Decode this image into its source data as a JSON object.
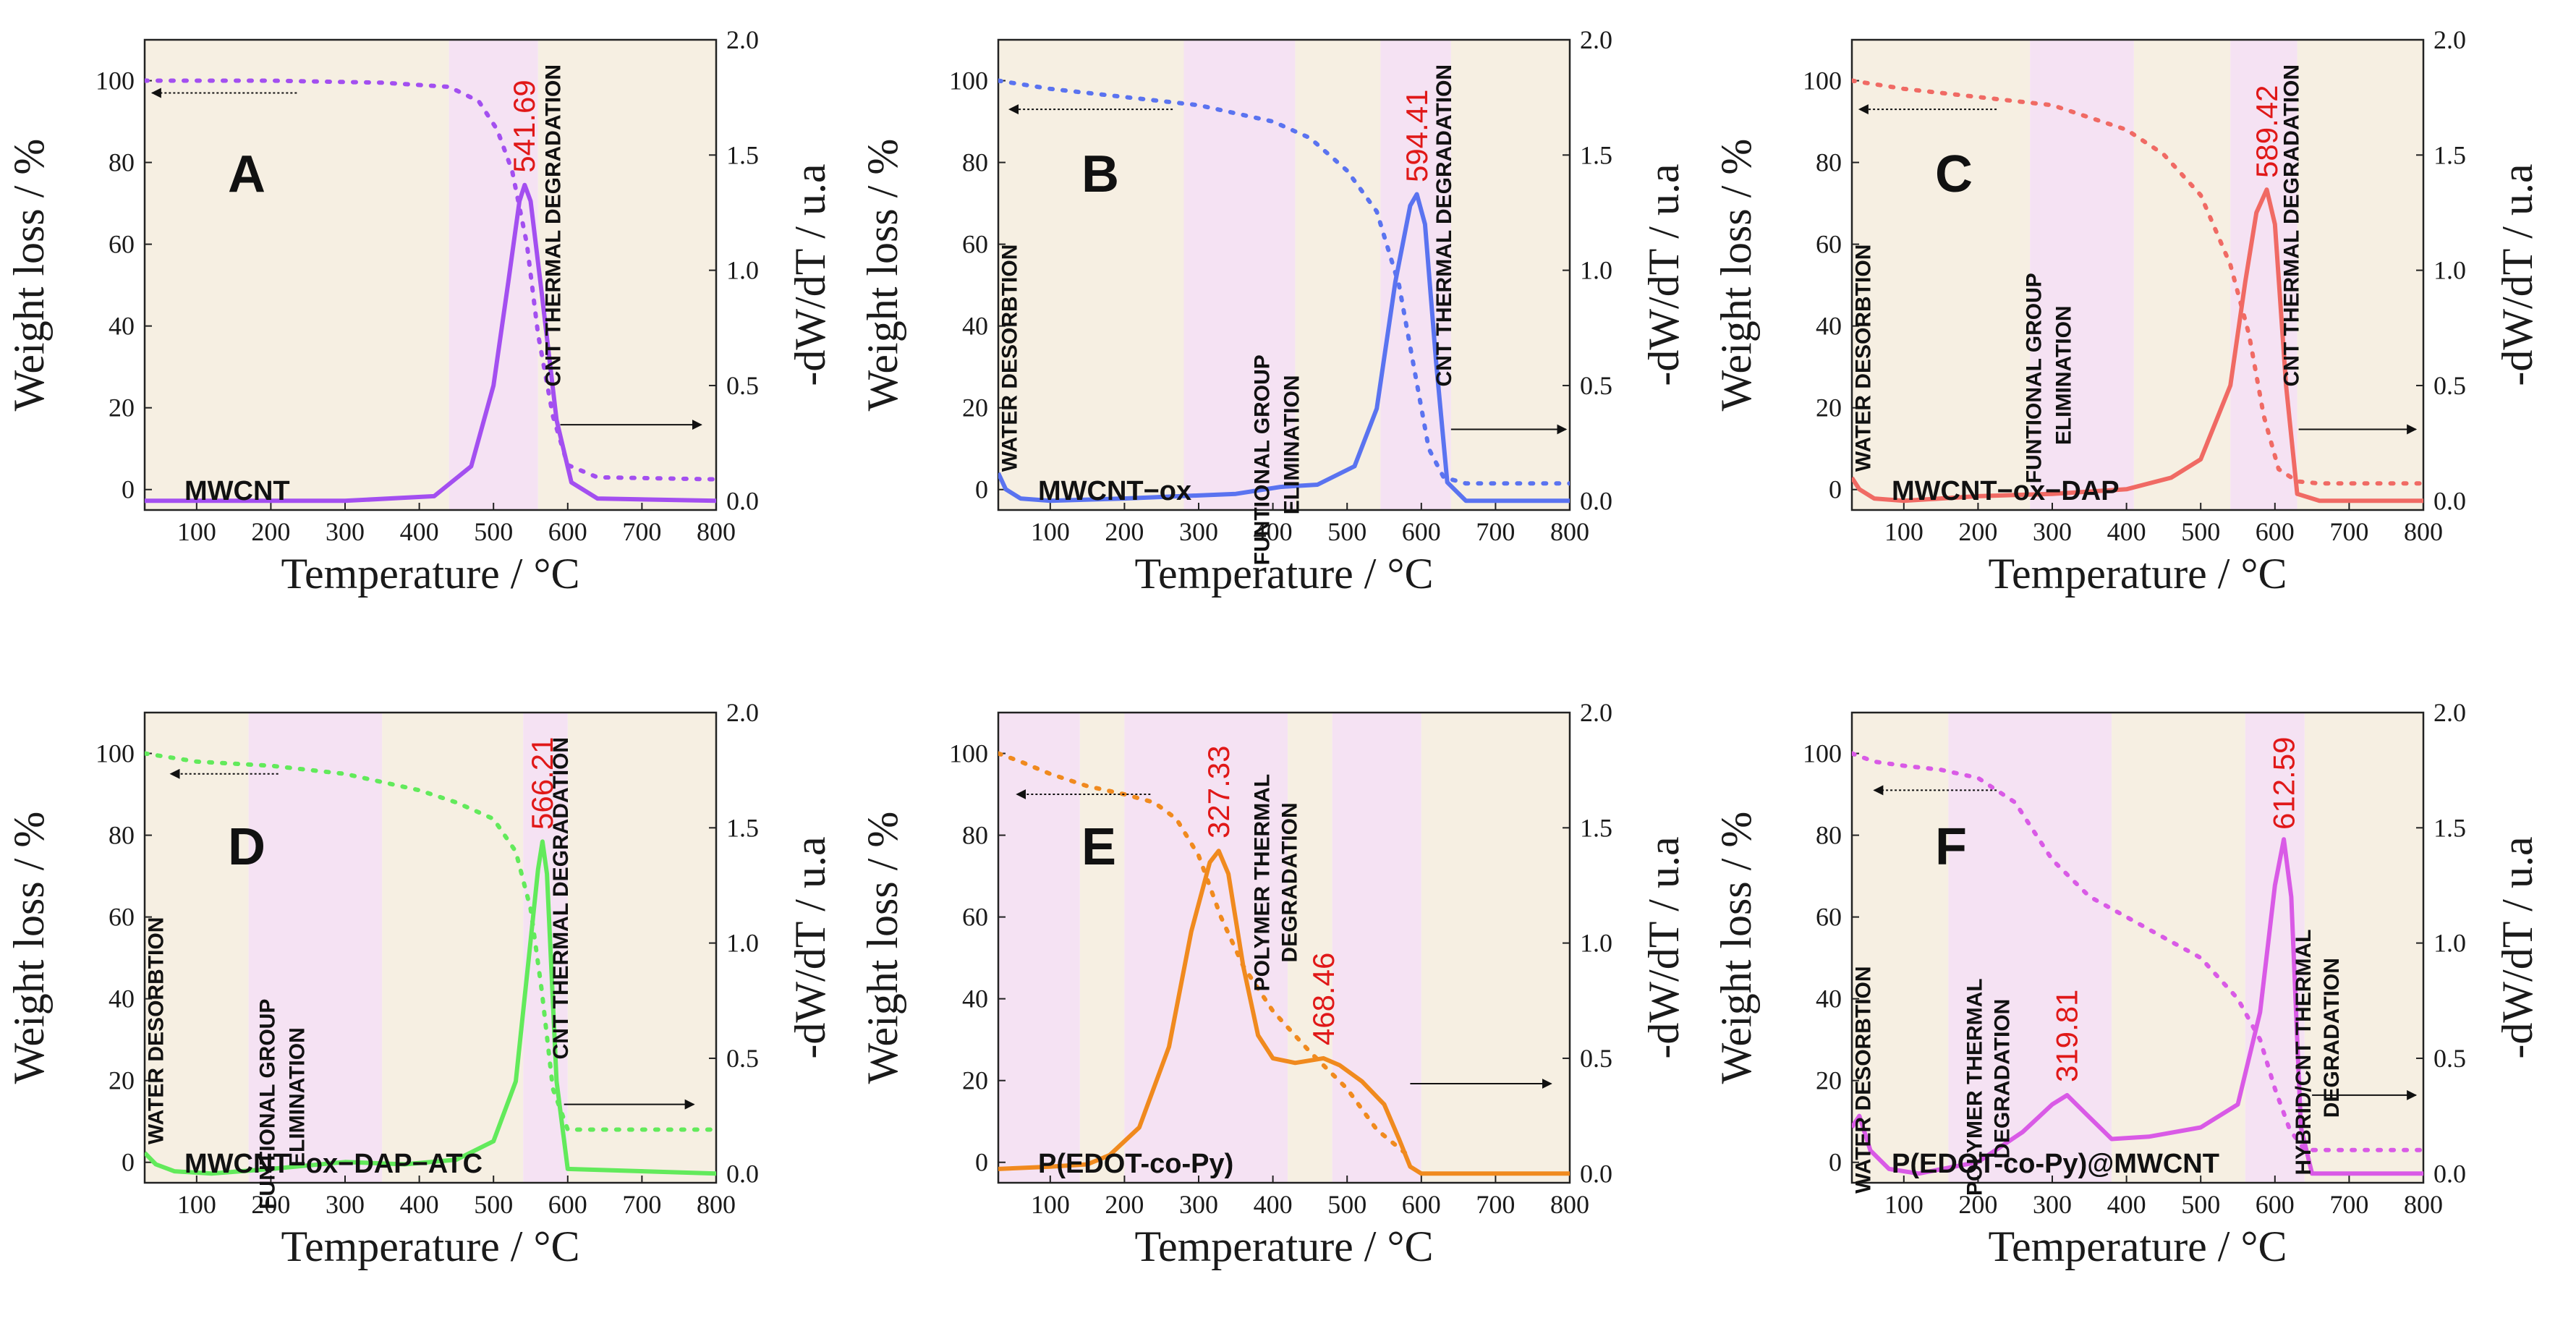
{
  "figure": {
    "panel_count": 6
  },
  "chart_data": [
    {
      "panel": "A",
      "sample": "MWCNT",
      "type": "line",
      "xlabel": "Temperature / °C",
      "ylabel": "Weight loss  / %",
      "y2label": "-dW/dT  / u.a",
      "xlim": [
        30,
        800
      ],
      "ylim": [
        -5,
        110
      ],
      "y2lim": [
        -0.04,
        2.0
      ],
      "xticks": [
        100,
        200,
        300,
        400,
        500,
        600,
        700,
        800
      ],
      "yticks": [
        0,
        20,
        40,
        60,
        80,
        100
      ],
      "y2ticks": [
        "0.0",
        "0.5",
        "1.0",
        "1.5",
        "2.0"
      ],
      "color": "#a34ff0",
      "shading": [
        [
          30,
          440,
          "#f6efe2"
        ],
        [
          440,
          560,
          "#f5e2f3"
        ],
        [
          560,
          800,
          "#f6efe2"
        ]
      ],
      "weight_series": {
        "name": "Weight loss (%)",
        "x": [
          30,
          200,
          350,
          440,
          480,
          505,
          525,
          545,
          560,
          580,
          600,
          640,
          800
        ],
        "y": [
          100,
          100,
          99.5,
          98.5,
          95,
          88,
          78,
          60,
          38,
          18,
          6,
          3,
          2.5
        ]
      },
      "dtg_series": {
        "name": "-dW/dT (u.a.)",
        "x": [
          30,
          300,
          420,
          470,
          500,
          520,
          535,
          542,
          550,
          565,
          585,
          605,
          640,
          800
        ],
        "y": [
          0.0,
          0.0,
          0.02,
          0.15,
          0.5,
          0.95,
          1.3,
          1.37,
          1.3,
          0.9,
          0.35,
          0.08,
          0.01,
          0.0
        ]
      },
      "peaks": [
        {
          "x": 541.69,
          "label": "541.69"
        }
      ],
      "annotations": [
        {
          "text": "CNT THERMAL DEGRADATION",
          "x": 590,
          "y": 104,
          "vertical": true
        }
      ],
      "arrow_left": {
        "x_from": 235,
        "x_to": 40,
        "y": 97
      },
      "arrow_right": {
        "x_from": 590,
        "x_to": 780,
        "y2": 0.33
      }
    },
    {
      "panel": "B",
      "sample": "MWCNT−ox",
      "type": "line",
      "xlabel": "Temperature / °C",
      "ylabel": "Weight loss  / %",
      "y2label": "-dW/dT  / u.a",
      "xlim": [
        30,
        800
      ],
      "ylim": [
        -5,
        110
      ],
      "y2lim": [
        -0.04,
        2.0
      ],
      "xticks": [
        100,
        200,
        300,
        400,
        500,
        600,
        700,
        800
      ],
      "yticks": [
        0,
        20,
        40,
        60,
        80,
        100
      ],
      "y2ticks": [
        "0.0",
        "0.5",
        "1.0",
        "1.5",
        "2.0"
      ],
      "color": "#5a73f0",
      "shading": [
        [
          30,
          280,
          "#f6efe2"
        ],
        [
          280,
          430,
          "#f5e2f3"
        ],
        [
          430,
          545,
          "#f6efe2"
        ],
        [
          545,
          640,
          "#f5e2f3"
        ],
        [
          640,
          800,
          "#f6efe2"
        ]
      ],
      "weight_series": {
        "name": "Weight loss (%)",
        "x": [
          30,
          100,
          200,
          300,
          400,
          450,
          500,
          540,
          570,
          590,
          610,
          630,
          660,
          800
        ],
        "y": [
          100,
          98,
          96,
          94,
          90,
          86,
          78,
          68,
          50,
          30,
          10,
          3,
          1.5,
          1.5
        ]
      },
      "dtg_series": {
        "name": "-dW/dT (u.a.)",
        "x": [
          30,
          40,
          60,
          100,
          200,
          350,
          410,
          460,
          510,
          540,
          565,
          585,
          594,
          605,
          620,
          635,
          660,
          800
        ],
        "y": [
          0.12,
          0.05,
          0.01,
          0.0,
          0.01,
          0.03,
          0.06,
          0.07,
          0.15,
          0.4,
          0.95,
          1.28,
          1.33,
          1.2,
          0.6,
          0.08,
          0.0,
          0.0
        ]
      },
      "peaks": [
        {
          "x": 594.41,
          "label": "594.41"
        }
      ],
      "annotations": [
        {
          "text": "WATER DESORBTION",
          "x": 55,
          "y": 60,
          "vertical": true
        },
        {
          "text": "FUNTIONAL GROUP",
          "x": 395,
          "y": 33,
          "vertical": true
        },
        {
          "text": "ELIMINATION",
          "x": 435,
          "y": 28,
          "vertical": true
        },
        {
          "text": "CNT THERMAL DEGRADATION",
          "x": 640,
          "y": 104,
          "vertical": true
        }
      ],
      "arrow_left": {
        "x_from": 265,
        "x_to": 45,
        "y": 93
      },
      "arrow_right": {
        "x_from": 640,
        "x_to": 795,
        "y2": 0.31
      }
    },
    {
      "panel": "C",
      "sample": "MWCNT−ox−DAP",
      "type": "line",
      "xlabel": "Temperature / °C",
      "ylabel": "Weight loss  / %",
      "y2label": "-dW/dT  / u.a",
      "xlim": [
        30,
        800
      ],
      "ylim": [
        -5,
        110
      ],
      "y2lim": [
        -0.04,
        2.0
      ],
      "xticks": [
        100,
        200,
        300,
        400,
        500,
        600,
        700,
        800
      ],
      "yticks": [
        0,
        20,
        40,
        60,
        80,
        100
      ],
      "y2ticks": [
        "0.0",
        "0.5",
        "1.0",
        "1.5",
        "2.0"
      ],
      "color": "#f06a64",
      "shading": [
        [
          30,
          270,
          "#f6efe2"
        ],
        [
          270,
          410,
          "#f5e2f3"
        ],
        [
          410,
          540,
          "#f6efe2"
        ],
        [
          540,
          630,
          "#f5e2f3"
        ],
        [
          630,
          800,
          "#f6efe2"
        ]
      ],
      "weight_series": {
        "name": "Weight loss (%)",
        "x": [
          30,
          100,
          200,
          300,
          400,
          450,
          500,
          540,
          565,
          585,
          605,
          630,
          660,
          800
        ],
        "y": [
          100,
          98,
          96,
          94,
          88,
          82,
          72,
          55,
          38,
          18,
          5,
          2,
          1.5,
          1.5
        ]
      },
      "dtg_series": {
        "name": "-dW/dT (u.a.)",
        "x": [
          30,
          40,
          60,
          100,
          200,
          300,
          400,
          460,
          500,
          540,
          560,
          575,
          589,
          600,
          615,
          630,
          660,
          800
        ],
        "y": [
          0.1,
          0.05,
          0.01,
          0.0,
          0.02,
          0.03,
          0.05,
          0.1,
          0.18,
          0.5,
          0.95,
          1.25,
          1.35,
          1.2,
          0.5,
          0.03,
          0.0,
          0.0
        ]
      },
      "peaks": [
        {
          "x": 589.42,
          "label": "589.42"
        }
      ],
      "annotations": [
        {
          "text": "WATER DESORBTION",
          "x": 55,
          "y": 60,
          "vertical": true
        },
        {
          "text": "FUNTIONAL GROUP",
          "x": 285,
          "y": 53,
          "vertical": true
        },
        {
          "text": "ELIMINATION",
          "x": 325,
          "y": 45,
          "vertical": true
        },
        {
          "text": "CNT THERMAL DEGRADATION",
          "x": 632,
          "y": 104,
          "vertical": true
        }
      ],
      "arrow_left": {
        "x_from": 225,
        "x_to": 40,
        "y": 93
      },
      "arrow_right": {
        "x_from": 632,
        "x_to": 790,
        "y2": 0.31
      }
    },
    {
      "panel": "D",
      "sample": "MWCNT−ox−DAP−ATC",
      "type": "line",
      "xlabel": "Temperature / °C",
      "ylabel": "Weight loss  / %",
      "y2label": "-dW/dT  / u.a",
      "xlim": [
        30,
        800
      ],
      "ylim": [
        -5,
        110
      ],
      "y2lim": [
        -0.04,
        2.0
      ],
      "xticks": [
        100,
        200,
        300,
        400,
        500,
        600,
        700,
        800
      ],
      "yticks": [
        0,
        20,
        40,
        60,
        80,
        100
      ],
      "y2ticks": [
        "0.0",
        "0.5",
        "1.0",
        "1.5",
        "2.0"
      ],
      "color": "#62ea5b",
      "shading": [
        [
          30,
          170,
          "#f6efe2"
        ],
        [
          170,
          350,
          "#f5e2f3"
        ],
        [
          350,
          540,
          "#f6efe2"
        ],
        [
          540,
          600,
          "#f5e2f3"
        ],
        [
          600,
          800,
          "#f6efe2"
        ]
      ],
      "weight_series": {
        "name": "Weight loss (%)",
        "x": [
          30,
          100,
          200,
          300,
          400,
          450,
          500,
          530,
          550,
          565,
          580,
          600,
          800
        ],
        "y": [
          100,
          98,
          97,
          95,
          91,
          88,
          84,
          76,
          62,
          42,
          18,
          8,
          8
        ]
      },
      "dtg_series": {
        "name": "-dW/dT (u.a.)",
        "x": [
          30,
          45,
          70,
          120,
          200,
          300,
          380,
          450,
          500,
          530,
          548,
          560,
          566,
          572,
          585,
          600,
          800
        ],
        "y": [
          0.09,
          0.04,
          0.01,
          0.0,
          0.02,
          0.05,
          0.04,
          0.06,
          0.14,
          0.4,
          0.95,
          1.32,
          1.44,
          1.3,
          0.4,
          0.02,
          0.0
        ]
      },
      "peaks": [
        {
          "x": 566.21,
          "label": "566.21"
        }
      ],
      "annotations": [
        {
          "text": "WATER DESORBTION",
          "x": 55,
          "y": 60,
          "vertical": true
        },
        {
          "text": "FUNTIONAL GROUP",
          "x": 205,
          "y": 40,
          "vertical": true
        },
        {
          "text": "ELIMINATION",
          "x": 245,
          "y": 33,
          "vertical": true
        },
        {
          "text": "CNT THERMAL DEGRADATION",
          "x": 600,
          "y": 104,
          "vertical": true
        }
      ],
      "arrow_left": {
        "x_from": 210,
        "x_to": 65,
        "y": 95
      },
      "arrow_right": {
        "x_from": 595,
        "x_to": 770,
        "y2": 0.3
      }
    },
    {
      "panel": "E",
      "sample": "P(EDOT-co-Py)",
      "type": "line",
      "xlabel": "Temperature / °C",
      "ylabel": "Weight loss  / %",
      "y2label": "-dW/dT  / u.a",
      "xlim": [
        30,
        800
      ],
      "ylim": [
        -5,
        110
      ],
      "y2lim": [
        -0.04,
        2.0
      ],
      "xticks": [
        100,
        200,
        300,
        400,
        500,
        600,
        700,
        800
      ],
      "yticks": [
        0,
        20,
        40,
        60,
        80,
        100
      ],
      "y2ticks": [
        "0.0",
        "0.5",
        "1.0",
        "1.5",
        "2.0"
      ],
      "color": "#f08a1e",
      "shading": [
        [
          30,
          140,
          "#f5e2f3"
        ],
        [
          140,
          200,
          "#f6efe2"
        ],
        [
          200,
          420,
          "#f5e2f3"
        ],
        [
          420,
          480,
          "#f6efe2"
        ],
        [
          480,
          600,
          "#f5e2f3"
        ],
        [
          600,
          800,
          "#f6efe2"
        ]
      ],
      "weight_series": {
        "name": "Weight loss (%)",
        "x": [
          30,
          60,
          100,
          150,
          200,
          240,
          270,
          300,
          330,
          360,
          400,
          450,
          500,
          540,
          580
        ],
        "y": [
          100,
          98,
          95,
          92,
          90,
          88,
          84,
          75,
          60,
          48,
          37,
          27,
          18,
          8,
          2
        ]
      },
      "dtg_series": {
        "name": "-dW/dT (u.a.)",
        "x": [
          30,
          100,
          150,
          180,
          220,
          260,
          290,
          315,
          327,
          340,
          360,
          380,
          400,
          430,
          468,
          490,
          520,
          550,
          570,
          585,
          600,
          800
        ],
        "y": [
          0.02,
          0.03,
          0.04,
          0.08,
          0.2,
          0.55,
          1.05,
          1.35,
          1.4,
          1.3,
          0.9,
          0.6,
          0.5,
          0.48,
          0.5,
          0.47,
          0.4,
          0.3,
          0.15,
          0.03,
          0.0,
          0.0
        ]
      },
      "peaks": [
        {
          "x": 327.33,
          "label": "327.33"
        },
        {
          "x": 468.46,
          "label": "468.46"
        }
      ],
      "annotations": [
        {
          "text": "POLYMER THERMAL",
          "x": 395,
          "y": 95,
          "vertical": true
        },
        {
          "text": "DEGRADATION",
          "x": 432,
          "y": 88,
          "vertical": true
        }
      ],
      "arrow_left": {
        "x_from": 235,
        "x_to": 55,
        "y": 90
      },
      "arrow_right": {
        "x_from": 585,
        "x_to": 775,
        "y2": 0.39
      }
    },
    {
      "panel": "F",
      "sample": "P(EDOT-co-Py)@MWCNT",
      "type": "line",
      "xlabel": "Temperature / °C",
      "ylabel": "Weight loss  / %",
      "y2label": "-dW/dT  / u.a",
      "xlim": [
        30,
        800
      ],
      "ylim": [
        -5,
        110
      ],
      "y2lim": [
        -0.04,
        2.0
      ],
      "xticks": [
        100,
        200,
        300,
        400,
        500,
        600,
        700,
        800
      ],
      "yticks": [
        0,
        20,
        40,
        60,
        80,
        100
      ],
      "y2ticks": [
        "0.0",
        "0.5",
        "1.0",
        "1.5",
        "2.0"
      ],
      "color": "#d95ae6",
      "shading": [
        [
          30,
          160,
          "#f6efe2"
        ],
        [
          160,
          380,
          "#f5e2f3"
        ],
        [
          380,
          560,
          "#f6efe2"
        ],
        [
          560,
          640,
          "#f5e2f3"
        ],
        [
          640,
          800,
          "#f6efe2"
        ]
      ],
      "weight_series": {
        "name": "Weight loss (%)",
        "x": [
          30,
          60,
          100,
          150,
          200,
          250,
          300,
          350,
          400,
          450,
          500,
          550,
          580,
          600,
          620,
          640,
          800
        ],
        "y": [
          100,
          98,
          97,
          96,
          94,
          88,
          74,
          65,
          60,
          55,
          50,
          40,
          30,
          18,
          8,
          3,
          3
        ]
      },
      "dtg_series": {
        "name": "-dW/dT (u.a.)",
        "x": [
          30,
          40,
          55,
          80,
          120,
          200,
          260,
          300,
          320,
          345,
          380,
          430,
          500,
          550,
          580,
          600,
          612,
          622,
          635,
          650,
          800
        ],
        "y": [
          0.2,
          0.25,
          0.1,
          0.02,
          0.0,
          0.05,
          0.18,
          0.3,
          0.34,
          0.26,
          0.15,
          0.16,
          0.2,
          0.3,
          0.7,
          1.25,
          1.45,
          1.2,
          0.2,
          0.0,
          0.0
        ]
      },
      "peaks": [
        {
          "x": 612.59,
          "label": "612.59"
        },
        {
          "x": 319.81,
          "label": "319.81"
        }
      ],
      "annotations": [
        {
          "text": "WATER DESORBTION",
          "x": 55,
          "y": 48,
          "vertical": true
        },
        {
          "text": "POLYMER THERMAL",
          "x": 205,
          "y": 45,
          "vertical": true
        },
        {
          "text": "DEGRADATION",
          "x": 242,
          "y": 40,
          "vertical": true
        },
        {
          "text": "HYBRID/CNT THERMAL",
          "x": 648,
          "y": 57,
          "vertical": true
        },
        {
          "text": "DEGRADATION",
          "x": 686,
          "y": 50,
          "vertical": true
        }
      ],
      "arrow_left": {
        "x_from": 225,
        "x_to": 60,
        "y": 91
      },
      "arrow_right": {
        "x_from": 650,
        "x_to": 790,
        "y2": 0.34
      }
    }
  ]
}
